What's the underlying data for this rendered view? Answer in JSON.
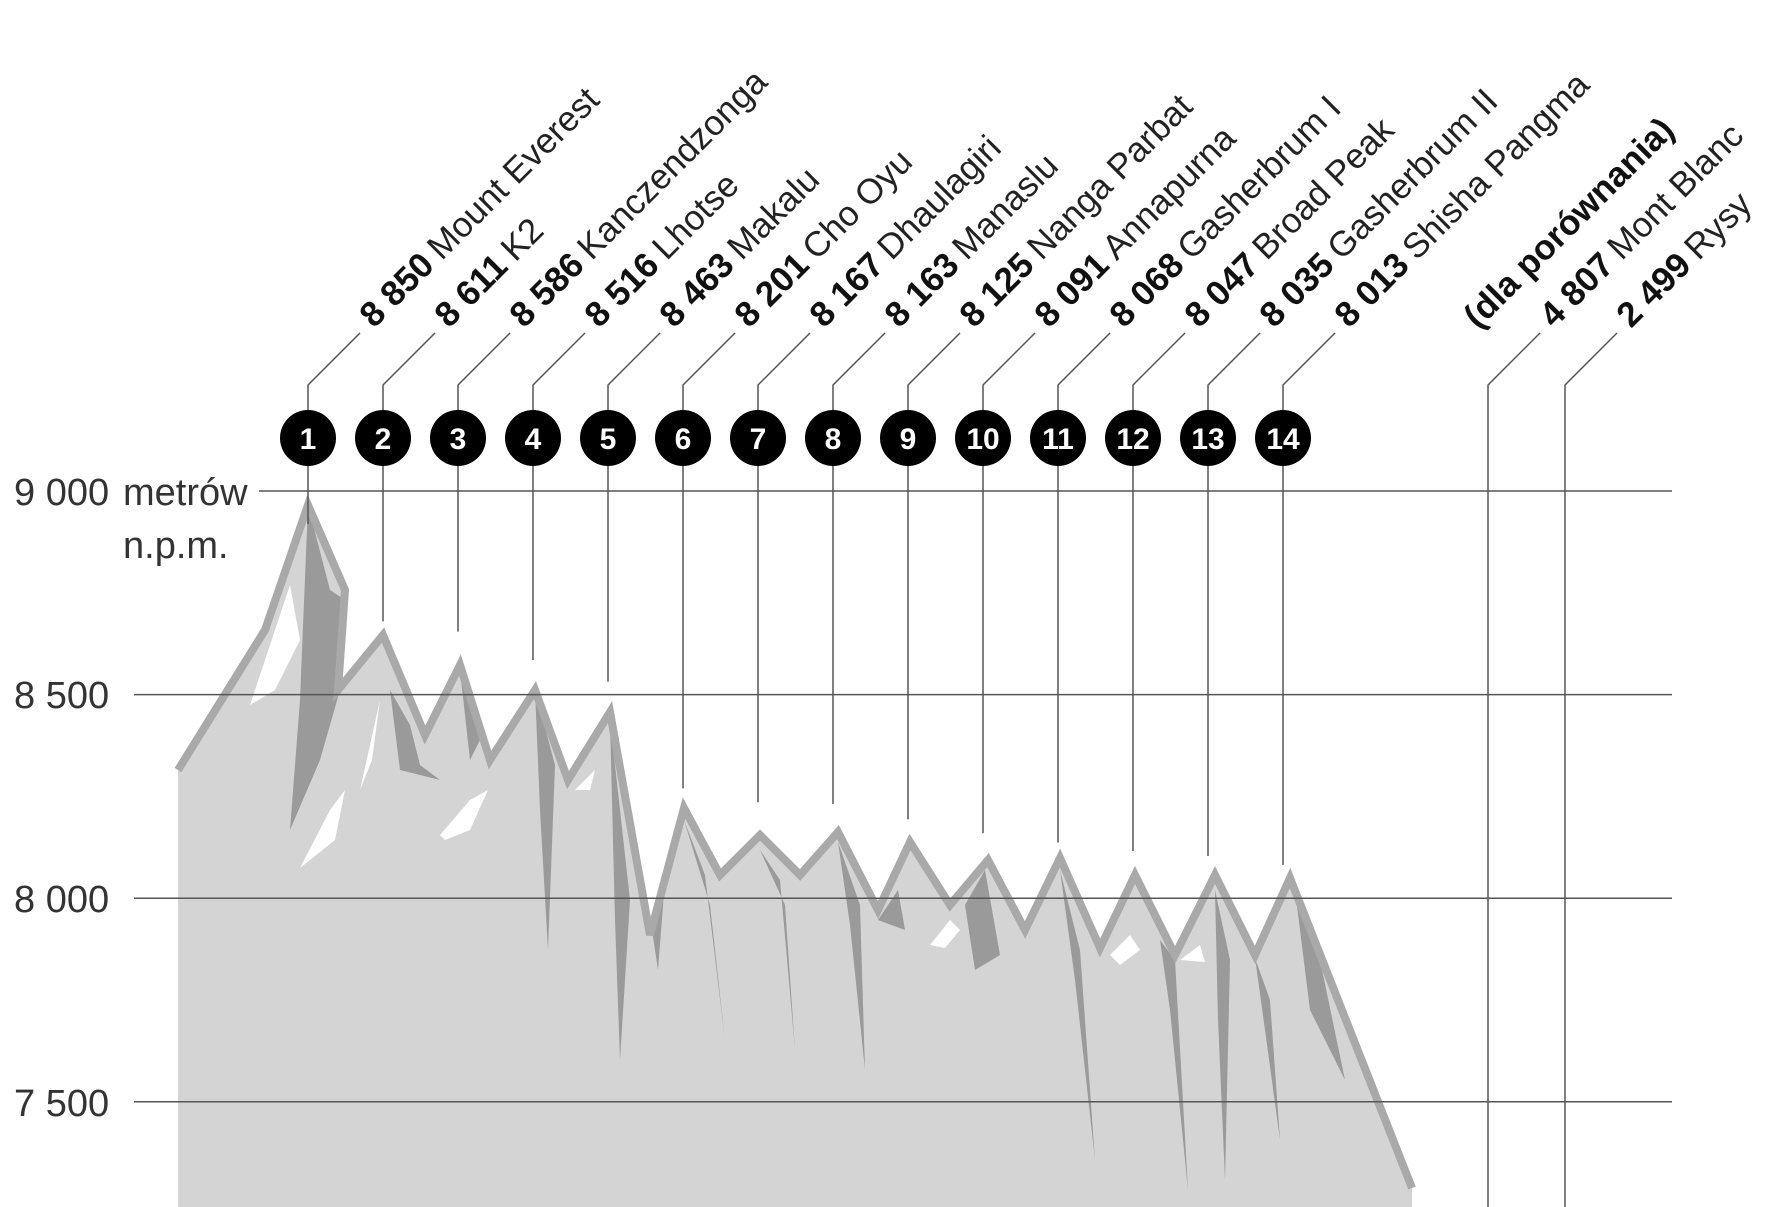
{
  "chart_data": {
    "type": "area",
    "title": "",
    "ylabel": "metrów n.p.m.",
    "y_tick_unit_line1": "metrów",
    "y_tick_unit_line2": "n.p.m.",
    "ylim": [
      7300,
      9000
    ],
    "yticks": [
      {
        "value": 9000,
        "label": "9 000"
      },
      {
        "value": 8500,
        "label": "8 500"
      },
      {
        "value": 8000,
        "label": "8 000"
      },
      {
        "value": 7500,
        "label": "7 500"
      }
    ],
    "grid": true,
    "peaks": [
      {
        "rank": "1",
        "height": 8850,
        "height_label": "8 850",
        "name": "Mount Everest"
      },
      {
        "rank": "2",
        "height": 8611,
        "height_label": "8 611",
        "name": "K2"
      },
      {
        "rank": "3",
        "height": 8586,
        "height_label": "8 586",
        "name": "Kanczendzonga"
      },
      {
        "rank": "4",
        "height": 8516,
        "height_label": "8 516",
        "name": "Lhotse"
      },
      {
        "rank": "5",
        "height": 8463,
        "height_label": "8 463",
        "name": "Makalu"
      },
      {
        "rank": "6",
        "height": 8201,
        "height_label": "8 201",
        "name": "Cho Oyu"
      },
      {
        "rank": "7",
        "height": 8167,
        "height_label": "8 167",
        "name": "Dhaulagiri"
      },
      {
        "rank": "8",
        "height": 8163,
        "height_label": "8 163",
        "name": "Manaslu"
      },
      {
        "rank": "9",
        "height": 8125,
        "height_label": "8 125",
        "name": "Nanga Parbat"
      },
      {
        "rank": "10",
        "height": 8091,
        "height_label": "8 091",
        "name": "Annapurna"
      },
      {
        "rank": "11",
        "height": 8068,
        "height_label": "8 068",
        "name": "Gasherbrum I"
      },
      {
        "rank": "12",
        "height": 8047,
        "height_label": "8 047",
        "name": "Broad Peak"
      },
      {
        "rank": "13",
        "height": 8035,
        "height_label": "8 035",
        "name": "Gasherbrum II"
      },
      {
        "rank": "14",
        "height": 8013,
        "height_label": "8 013",
        "name": "Shisha Pangma"
      }
    ],
    "comparison_label": "(dla porównania)",
    "comparison": [
      {
        "height": 4807,
        "height_label": "4 807",
        "name": "Mont Blanc"
      },
      {
        "height": 2499,
        "height_label": "2 499",
        "name": "Rysy"
      }
    ],
    "colors": {
      "fill": "#d4d4d4",
      "ridge": "#a9a9a9",
      "shadow": "#9a9a9a",
      "highlight": "#ffffff",
      "badge": "#000000",
      "grid": "#555555",
      "leader": "#555555"
    }
  }
}
